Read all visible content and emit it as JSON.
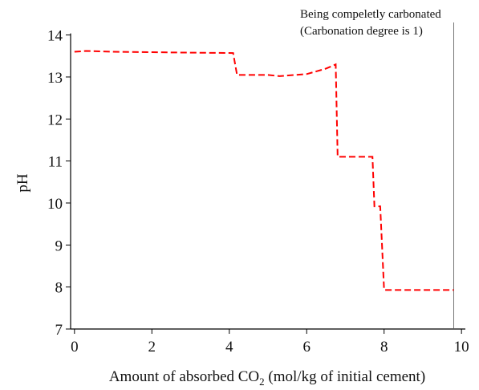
{
  "chart_data": {
    "type": "line",
    "xlabel": [
      "Amount of absorbed CO",
      "2",
      " (mol/kg of initial cement)"
    ],
    "ylabel": "pH",
    "annotations": [
      "Being compeletly carbonated",
      "(Carbonation degree is 1)"
    ],
    "vline": 9.8,
    "xlim": [
      -0.1,
      10.1
    ],
    "ylim": [
      7,
      14
    ],
    "xticks": [
      0,
      2,
      4,
      6,
      8,
      10
    ],
    "yticks": [
      7,
      8,
      9,
      10,
      11,
      12,
      13,
      14
    ],
    "series": [
      {
        "color": "#ff0000",
        "x": [
          0,
          0.3,
          1,
          2,
          3,
          4.1,
          4.2,
          5,
          5.3,
          6,
          6.5,
          6.75,
          6.8,
          7.7,
          7.75,
          7.9,
          8.0,
          9.8
        ],
        "values": [
          13.6,
          13.62,
          13.6,
          13.59,
          13.58,
          13.57,
          13.05,
          13.05,
          13.02,
          13.07,
          13.2,
          13.3,
          11.1,
          11.1,
          9.92,
          9.92,
          7.93,
          7.93
        ]
      }
    ]
  }
}
